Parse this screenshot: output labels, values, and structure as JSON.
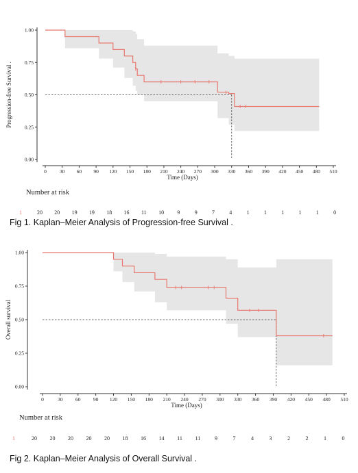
{
  "chart_data": [
    {
      "type": "step",
      "caption": "Fig 1. Kaplan–Meier Analysis of Progression-free Survival .",
      "ylabel": "Progression-free Survival .",
      "xlabel": "Time (Days)",
      "xlim": [
        0,
        510
      ],
      "ylim": [
        0,
        1
      ],
      "xticks": [
        0,
        30,
        60,
        90,
        120,
        150,
        180,
        210,
        240,
        270,
        300,
        330,
        360,
        390,
        420,
        450,
        480,
        510
      ],
      "yticks": [
        0,
        0.25,
        0.5,
        0.75,
        1
      ],
      "ytick_labels": [
        "0.00",
        "0.25",
        "0.50",
        "0.75",
        "1.00"
      ],
      "line_color": "#e8776f",
      "band_color": "#e6e6e6",
      "step": {
        "x": [
          0,
          35,
          95,
          120,
          140,
          155,
          160,
          163,
          175,
          305,
          325,
          335,
          485
        ],
        "y": [
          1.0,
          0.95,
          0.9,
          0.85,
          0.8,
          0.75,
          0.7,
          0.65,
          0.6,
          0.52,
          0.51,
          0.41,
          0.41
        ]
      },
      "ci_upper": {
        "x": [
          0,
          35,
          95,
          120,
          140,
          155,
          160,
          163,
          175,
          305,
          325,
          335,
          485
        ],
        "y": [
          1.0,
          1.0,
          1.0,
          1.0,
          1.0,
          0.99,
          0.97,
          0.93,
          0.88,
          0.82,
          0.8,
          0.78,
          0.78
        ]
      },
      "ci_lower": {
        "x": [
          0,
          35,
          95,
          120,
          140,
          155,
          160,
          163,
          175,
          305,
          325,
          335,
          485
        ],
        "y": [
          1.0,
          0.86,
          0.78,
          0.71,
          0.63,
          0.57,
          0.53,
          0.5,
          0.45,
          0.32,
          0.27,
          0.22,
          0.22
        ]
      },
      "censored_x": [
        160,
        205,
        240,
        265,
        290,
        320,
        345,
        355
      ],
      "median_line": {
        "y": 0.5,
        "x": 330
      },
      "risk_title": "Number at risk",
      "risk_marker": "1",
      "risk_counts": [
        "20",
        "20",
        "19",
        "19",
        "18",
        "16",
        "11",
        "10",
        "9",
        "9",
        "7",
        "4",
        "1",
        "1",
        "1",
        "1",
        "1",
        "0"
      ]
    },
    {
      "type": "step",
      "caption": "Fig 2. Kaplan–Meier Analysis of Overall Survival .",
      "ylabel": "Overall survival",
      "xlabel": "Time (Days)",
      "xlim": [
        0,
        510
      ],
      "ylim": [
        0,
        1
      ],
      "xticks": [
        0,
        30,
        60,
        90,
        120,
        150,
        180,
        210,
        240,
        270,
        300,
        330,
        360,
        390,
        420,
        450,
        480,
        510
      ],
      "yticks": [
        0,
        0.25,
        0.5,
        0.75,
        1
      ],
      "ytick_labels": [
        "0.00",
        "0.25",
        "0.50",
        "0.75",
        "1.00"
      ],
      "line_color": "#e8776f",
      "band_color": "#e6e6e6",
      "step": {
        "x": [
          0,
          120,
          135,
          155,
          190,
          210,
          310,
          330,
          395,
          490
        ],
        "y": [
          1.0,
          0.95,
          0.9,
          0.85,
          0.8,
          0.74,
          0.66,
          0.57,
          0.38,
          0.38
        ]
      },
      "ci_upper": {
        "x": [
          0,
          120,
          135,
          155,
          190,
          210,
          310,
          330,
          395,
          490
        ],
        "y": [
          1.0,
          1.0,
          1.0,
          1.0,
          0.99,
          0.97,
          0.95,
          0.89,
          0.95,
          0.95
        ]
      },
      "ci_lower": {
        "x": [
          0,
          120,
          135,
          155,
          190,
          210,
          310,
          330,
          395,
          490
        ],
        "y": [
          1.0,
          0.86,
          0.78,
          0.71,
          0.63,
          0.57,
          0.47,
          0.37,
          0.16,
          0.16
        ]
      },
      "censored_x": [
        225,
        235,
        280,
        290,
        350,
        365,
        475
      ],
      "median_line": {
        "y": 0.5,
        "x": 395
      },
      "risk_title": "Number at risk",
      "risk_marker": "1",
      "risk_counts": [
        "20",
        "20",
        "20",
        "20",
        "20",
        "18",
        "16",
        "14",
        "11",
        "11",
        "9",
        "7",
        "4",
        "3",
        "2",
        "2",
        "1",
        "0"
      ]
    }
  ]
}
